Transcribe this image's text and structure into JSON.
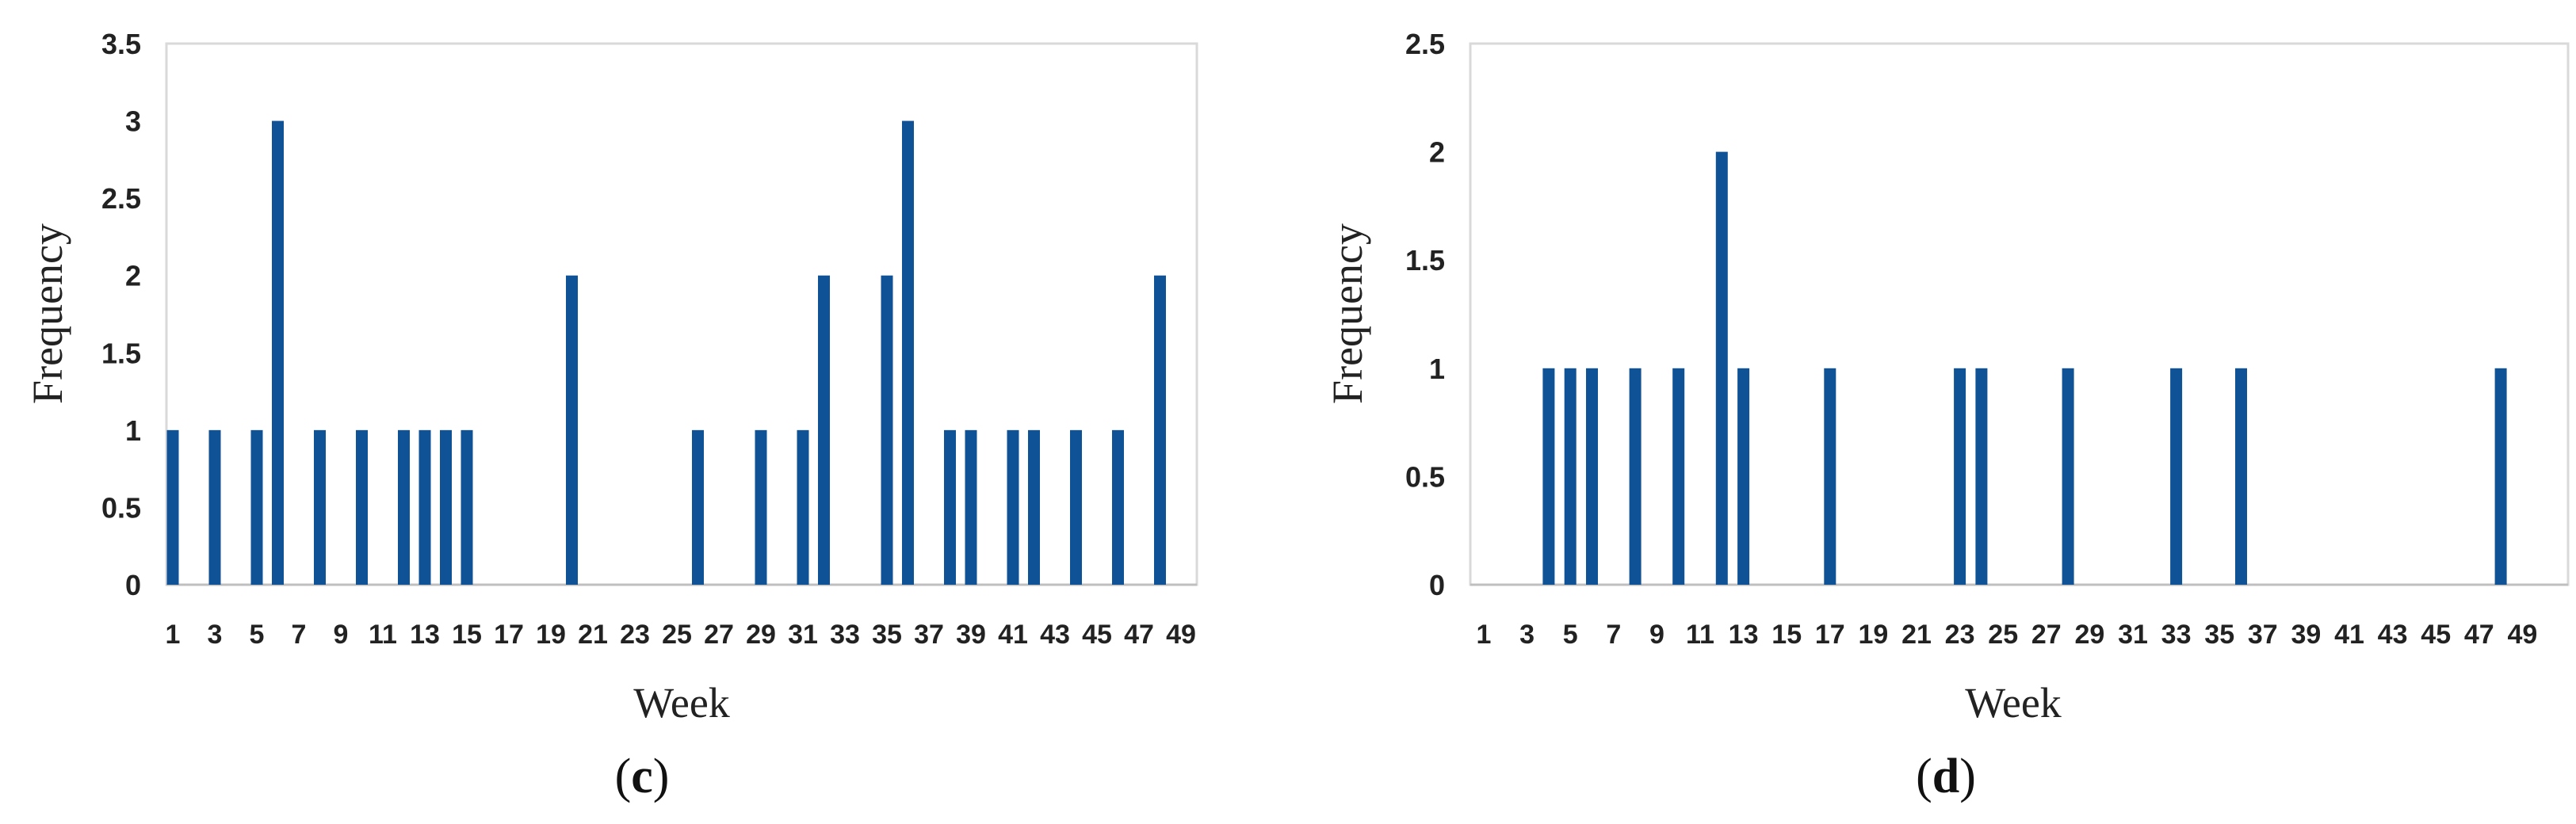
{
  "colors": {
    "bar": "#0f5296",
    "frame": "#d9d9d9",
    "axis": "#bfbfbf",
    "text": "#222222"
  },
  "chart_data": [
    {
      "type": "bar",
      "panel": "c",
      "caption": {
        "open": "(",
        "letter": "c",
        "close": ")"
      },
      "xlabel": "Week",
      "ylabel": "Frequency",
      "ylim": [
        0,
        3.5
      ],
      "yticks": [
        "0",
        "0.5",
        "1",
        "1.5",
        "2",
        "2.5",
        "3",
        "3.5"
      ],
      "xlim": [
        1,
        49
      ],
      "xtick_labels": [
        "1",
        "3",
        "5",
        "7",
        "9",
        "11",
        "13",
        "15",
        "17",
        "19",
        "21",
        "23",
        "25",
        "27",
        "29",
        "31",
        "33",
        "35",
        "37",
        "39",
        "41",
        "43",
        "45",
        "47",
        "49"
      ],
      "x": [
        1,
        3,
        5,
        6,
        8,
        10,
        12,
        13,
        14,
        15,
        20,
        26,
        29,
        31,
        32,
        35,
        36,
        38,
        39,
        41,
        42,
        44,
        46,
        48
      ],
      "values": [
        1,
        1,
        1,
        3,
        1,
        1,
        1,
        1,
        1,
        1,
        2,
        1,
        1,
        1,
        2,
        2,
        3,
        1,
        1,
        1,
        1,
        1,
        1,
        2
      ]
    },
    {
      "type": "bar",
      "panel": "d",
      "caption": {
        "open": "(",
        "letter": "d",
        "close": ")"
      },
      "xlabel": "Week",
      "ylabel": "Frequency",
      "ylim": [
        0,
        2.5
      ],
      "yticks": [
        "0",
        "0.5",
        "1",
        "1.5",
        "2",
        "2.5"
      ],
      "xlim": [
        1,
        49
      ],
      "xtick_labels": [
        "1",
        "3",
        "5",
        "7",
        "9",
        "11",
        "13",
        "15",
        "17",
        "19",
        "21",
        "23",
        "25",
        "27",
        "29",
        "31",
        "33",
        "35",
        "37",
        "39",
        "41",
        "43",
        "45",
        "47",
        "49"
      ],
      "x": [
        4,
        5,
        6,
        8,
        10,
        12,
        13,
        17,
        23,
        24,
        28,
        33,
        36,
        48
      ],
      "values": [
        1,
        1,
        1,
        1,
        1,
        2,
        1,
        1,
        1,
        1,
        1,
        1,
        1,
        1
      ]
    }
  ]
}
